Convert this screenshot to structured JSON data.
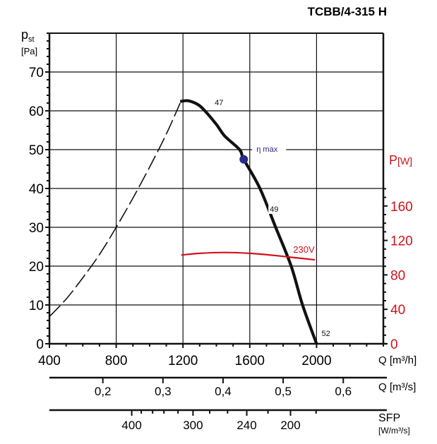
{
  "chart_data": {
    "type": "line",
    "title": "TCBB/4-315 H",
    "y_axis": {
      "label": "p",
      "label_sub": "st",
      "unit": "[Pa]",
      "range": [
        0,
        80
      ],
      "ticks": [
        0,
        10,
        20,
        30,
        40,
        50,
        60,
        70
      ],
      "minor_step": 2
    },
    "y2_axis": {
      "label": "P",
      "unit": "[W]",
      "range": [
        0,
        180
      ],
      "ticks": [
        0,
        40,
        80,
        120,
        160
      ],
      "minor_step": 10,
      "color": "#d0121b"
    },
    "x_axis": {
      "label": "Q [m³/h]",
      "range": [
        400,
        2400
      ],
      "ticks": [
        400,
        800,
        1200,
        1600,
        2000
      ],
      "minor_step": 100
    },
    "x_axis_2": {
      "label": "Q [m³/s]",
      "ticks": [
        {
          "label": "0,2",
          "value": 0.2
        },
        {
          "label": "0,3",
          "value": 0.3
        },
        {
          "label": "0,4",
          "value": 0.4
        },
        {
          "label": "0,5",
          "value": 0.5
        },
        {
          "label": "0,6",
          "value": 0.6
        }
      ]
    },
    "x_axis_3": {
      "label": "SFP",
      "unit": "[W/m³/s]",
      "ticks": [
        {
          "sfp": 400,
          "q": 893,
          "label": "400"
        },
        {
          "sfp": 380,
          "q": 950
        },
        {
          "sfp": 360,
          "q": 1018
        },
        {
          "sfp": 340,
          "q": 1086
        },
        {
          "sfp": 320,
          "q": 1170
        },
        {
          "sfp": 300,
          "q": 1260,
          "label": "300"
        },
        {
          "sfp": 280,
          "q": 1360
        },
        {
          "sfp": 260,
          "q": 1467
        },
        {
          "sfp": 240,
          "q": 1582,
          "label": "240"
        },
        {
          "sfp": 220,
          "q": 1709
        },
        {
          "sfp": 200,
          "q": 1844,
          "label": "200"
        },
        {
          "sfp": 180,
          "q": 1997
        }
      ]
    },
    "grid": true,
    "series": [
      {
        "name": "pressure-dashed",
        "style": "dashed",
        "color": "#111111",
        "axis": "y",
        "points": [
          [
            400,
            7
          ],
          [
            500,
            11.5
          ],
          [
            600,
            17
          ],
          [
            700,
            23
          ],
          [
            800,
            30
          ],
          [
            900,
            37.5
          ],
          [
            1000,
            45.5
          ],
          [
            1100,
            54
          ],
          [
            1183,
            62
          ]
        ]
      },
      {
        "name": "pressure",
        "style": "solid",
        "color": "#111111",
        "axis": "y",
        "points": [
          [
            1183,
            62.4
          ],
          [
            1230,
            62.6
          ],
          [
            1290,
            61.6
          ],
          [
            1331,
            60
          ],
          [
            1400,
            56.5
          ],
          [
            1450,
            53.5
          ],
          [
            1539,
            50
          ],
          [
            1564,
            47.5
          ],
          [
            1661,
            40
          ],
          [
            1755,
            30
          ],
          [
            1848,
            20
          ],
          [
            1916,
            10
          ],
          [
            2000,
            0
          ]
        ]
      },
      {
        "name": "power-230V",
        "style": "solid",
        "color": "#d0121b",
        "axis": "y2",
        "points": [
          [
            1190,
            103
          ],
          [
            1300,
            105
          ],
          [
            1450,
            106
          ],
          [
            1600,
            105
          ],
          [
            1750,
            102.5
          ],
          [
            1870,
            100
          ],
          [
            1990,
            97.5
          ]
        ]
      }
    ],
    "annotations": [
      {
        "text": "47",
        "q": 1390,
        "p": 61.5
      },
      {
        "text": "49",
        "q": 1720,
        "p": 34
      },
      {
        "text": "52",
        "q": 2030,
        "p": 2
      },
      {
        "text": "230V",
        "q": 1860,
        "p": 23.5,
        "color": "#d0121b"
      },
      {
        "text": "η max",
        "q": 1640,
        "p": 49.5,
        "color": "#2a2a7a"
      }
    ],
    "marker": {
      "name": "η max",
      "q": 1564,
      "p": 47.5,
      "color": "#2a2a8a"
    }
  }
}
